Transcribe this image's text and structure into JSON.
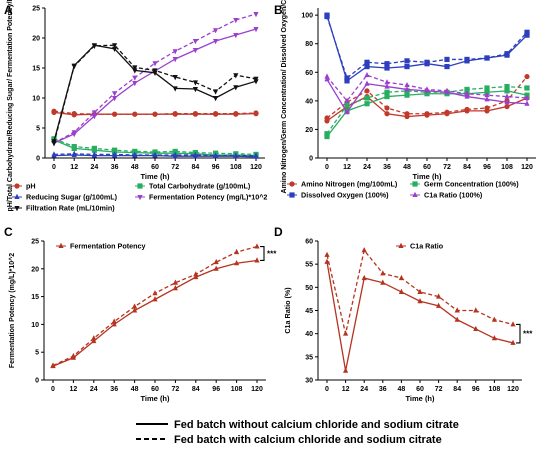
{
  "figure": {
    "bottom_legend": [
      {
        "label": "Fed batch without calcium chloride and sodium citrate",
        "dash": "solid"
      },
      {
        "label": "Fed batch with calcium chloride and sodium citrate",
        "dash": "dashed"
      }
    ]
  },
  "chart_data": [
    {
      "panel": "A",
      "type": "line",
      "xlabel": "Time (h)",
      "ylabel": "pH/Total Carbohydrate/Reducing Sugar/ Fermentation Potency/Filtration Rate",
      "x": [
        0,
        12,
        24,
        36,
        48,
        60,
        72,
        84,
        96,
        108,
        120
      ],
      "xticks": [
        "0",
        "12",
        "24",
        "36",
        "48",
        "60",
        "72",
        "84",
        "96",
        "108",
        "120"
      ],
      "ylim": [
        0,
        25
      ],
      "yticks": [
        "0",
        "5",
        "10",
        "15",
        "20",
        "25"
      ],
      "legend_position": "bottom",
      "legend": [
        {
          "name": "pH",
          "color": "#c0392b",
          "marker": "circle"
        },
        {
          "name": "Total Carbohydrate (g/100mL)",
          "color": "#27ae60",
          "marker": "square"
        },
        {
          "name": "Reducing Sugar (g/100mL)",
          "color": "#2d3fbf",
          "marker": "triangle-up"
        },
        {
          "name": "Fermentation Potency (mg/L)*10^2",
          "color": "#9b3fcf",
          "marker": "triangle-down"
        },
        {
          "name": "Filtration Rate (mL/10min)",
          "color": "#111111",
          "marker": "triangle-down"
        }
      ],
      "series": [
        {
          "legend": 0,
          "color": "#c0392b",
          "dash": "solid",
          "values": [
            7.6,
            7.2,
            7.3,
            7.3,
            7.3,
            7.3,
            7.3,
            7.3,
            7.3,
            7.3,
            7.4
          ]
        },
        {
          "legend": 0,
          "color": "#c0392b",
          "dash": "dashed",
          "values": [
            7.8,
            7.4,
            7.3,
            7.3,
            7.3,
            7.3,
            7.4,
            7.4,
            7.4,
            7.4,
            7.5
          ]
        },
        {
          "legend": 1,
          "color": "#27ae60",
          "dash": "solid",
          "values": [
            3.0,
            1.6,
            1.3,
            1.0,
            0.9,
            0.8,
            0.8,
            0.7,
            0.5,
            0.5,
            0.4
          ]
        },
        {
          "legend": 1,
          "color": "#27ae60",
          "dash": "dashed",
          "values": [
            3.2,
            1.9,
            1.6,
            1.3,
            1.1,
            1.0,
            1.1,
            0.9,
            0.8,
            0.7,
            0.6
          ]
        },
        {
          "legend": 2,
          "color": "#2d3fbf",
          "dash": "solid",
          "values": [
            0.4,
            0.5,
            0.4,
            0.4,
            0.4,
            0.4,
            0.3,
            0.3,
            0.3,
            0.3,
            0.2
          ]
        },
        {
          "legend": 2,
          "color": "#2d3fbf",
          "dash": "dashed",
          "values": [
            0.6,
            0.7,
            0.6,
            0.6,
            0.5,
            0.5,
            0.5,
            0.5,
            0.4,
            0.4,
            0.4
          ]
        },
        {
          "legend": 3,
          "color": "#9b3fcf",
          "dash": "solid",
          "values": [
            2.5,
            4.0,
            7.0,
            10.0,
            12.5,
            14.5,
            16.5,
            18.0,
            19.5,
            20.5,
            21.5
          ]
        },
        {
          "legend": 3,
          "color": "#9b3fcf",
          "dash": "dashed",
          "values": [
            2.5,
            4.3,
            7.6,
            10.8,
            13.4,
            15.8,
            17.8,
            19.5,
            21.3,
            23.0,
            24.0
          ]
        },
        {
          "legend": 4,
          "color": "#111111",
          "dash": "solid",
          "values": [
            2.8,
            15.4,
            18.8,
            18.2,
            14.6,
            14.2,
            11.6,
            11.5,
            10.0,
            11.8,
            12.8
          ]
        },
        {
          "legend": 4,
          "color": "#111111",
          "dash": "dashed",
          "values": [
            2.5,
            15.3,
            18.7,
            18.8,
            15.1,
            14.6,
            13.5,
            12.6,
            11.1,
            13.8,
            13.2
          ]
        }
      ]
    },
    {
      "panel": "B",
      "type": "line",
      "xlabel": "Time (h)",
      "ylabel": "Amino Nitrogen/Germ Concentration/ Dissolved Oxygen/C1a Ratio",
      "x": [
        0,
        12,
        24,
        36,
        48,
        60,
        72,
        84,
        96,
        108,
        120
      ],
      "xticks": [
        "0",
        "12",
        "24",
        "36",
        "48",
        "60",
        "72",
        "84",
        "96",
        "108",
        "120"
      ],
      "ylim": [
        0,
        105
      ],
      "yticks": [
        "0",
        "20",
        "40",
        "60",
        "80",
        "100"
      ],
      "legend_position": "bottom",
      "legend": [
        {
          "name": "Amino Nitrogen (mg/100mL)",
          "color": "#c0392b",
          "marker": "circle"
        },
        {
          "name": "Germ Concentration (100%)",
          "color": "#27ae60",
          "marker": "square"
        },
        {
          "name": "Dissolved Oxygen (100%)",
          "color": "#2d3fbf",
          "marker": "square"
        },
        {
          "name": "C1a Ratio (100%)",
          "color": "#9b3fcf",
          "marker": "triangle-up"
        }
      ],
      "series": [
        {
          "legend": 0,
          "color": "#c0392b",
          "dash": "solid",
          "values": [
            26,
            36,
            43,
            31,
            29,
            30,
            31,
            33,
            33,
            36,
            42
          ]
        },
        {
          "legend": 0,
          "color": "#c0392b",
          "dash": "dashed",
          "values": [
            28,
            39,
            47,
            35,
            31,
            31,
            32,
            34,
            35,
            40,
            57
          ]
        },
        {
          "legend": 1,
          "color": "#27ae60",
          "dash": "solid",
          "values": [
            15,
            33,
            38,
            43,
            44,
            45,
            45,
            45,
            46,
            47,
            44
          ]
        },
        {
          "legend": 1,
          "color": "#27ae60",
          "dash": "dashed",
          "values": [
            17,
            37,
            42,
            46,
            47,
            46,
            46,
            48,
            49,
            50,
            49
          ]
        },
        {
          "legend": 2,
          "color": "#2d3fbf",
          "dash": "solid",
          "values": [
            100,
            54,
            64,
            63,
            64,
            66,
            64,
            68,
            70,
            72,
            86
          ]
        },
        {
          "legend": 2,
          "color": "#2d3fbf",
          "dash": "dashed",
          "values": [
            99,
            56,
            67,
            66,
            68,
            67,
            69,
            69,
            70,
            73,
            88
          ]
        },
        {
          "legend": 3,
          "color": "#9b3fcf",
          "dash": "solid",
          "values": [
            55,
            32,
            52,
            50,
            48,
            47,
            46,
            43,
            41,
            39,
            38
          ]
        },
        {
          "legend": 3,
          "color": "#9b3fcf",
          "dash": "dashed",
          "values": [
            57,
            40,
            58,
            53,
            51,
            48,
            47,
            45,
            44,
            43,
            42
          ]
        }
      ]
    },
    {
      "panel": "C",
      "type": "line",
      "xlabel": "Time (h)",
      "ylabel": "Fermentation Potency (mg/L)*10^2",
      "x": [
        0,
        12,
        24,
        36,
        48,
        60,
        72,
        84,
        96,
        108,
        120
      ],
      "xticks": [
        "0",
        "12",
        "24",
        "36",
        "48",
        "60",
        "72",
        "84",
        "96",
        "108",
        "120"
      ],
      "ylim": [
        0,
        25
      ],
      "yticks": [
        "0",
        "5",
        "10",
        "15",
        "20",
        "25"
      ],
      "legend_position": "top-left",
      "legend": [
        {
          "name": "Fermentation Potency",
          "color": "#b5331f",
          "marker": "triangle-up"
        }
      ],
      "significance": "***",
      "series": [
        {
          "legend": 0,
          "color": "#b5331f",
          "dash": "solid",
          "values": [
            2.5,
            4.0,
            7.0,
            10.0,
            12.5,
            14.5,
            16.5,
            18.5,
            20.0,
            21.0,
            21.5
          ]
        },
        {
          "legend": 0,
          "color": "#b5331f",
          "dash": "dashed",
          "values": [
            2.6,
            4.3,
            7.5,
            10.5,
            13.2,
            15.6,
            17.5,
            19.0,
            21.2,
            23.0,
            24.0
          ]
        }
      ]
    },
    {
      "panel": "D",
      "type": "line",
      "xlabel": "Time (h)",
      "ylabel": "C1a Ratio (%)",
      "x": [
        0,
        12,
        24,
        36,
        48,
        60,
        72,
        84,
        96,
        108,
        120
      ],
      "xticks": [
        "0",
        "12",
        "24",
        "36",
        "48",
        "60",
        "72",
        "84",
        "96",
        "108",
        "120"
      ],
      "ylim": [
        30,
        60
      ],
      "yticks": [
        "30",
        "35",
        "40",
        "45",
        "50",
        "55",
        "60"
      ],
      "legend_position": "top-center",
      "legend": [
        {
          "name": "C1a Ratio",
          "color": "#b5331f",
          "marker": "triangle-up"
        }
      ],
      "significance": "***",
      "series": [
        {
          "legend": 0,
          "color": "#b5331f",
          "dash": "solid",
          "values": [
            55.5,
            32.0,
            52.0,
            51.0,
            49.0,
            47.0,
            46.0,
            43.0,
            41.0,
            39.0,
            38.0
          ]
        },
        {
          "legend": 0,
          "color": "#b5331f",
          "dash": "dashed",
          "values": [
            57.0,
            40.0,
            58.0,
            53.0,
            52.0,
            49.0,
            48.0,
            45.0,
            45.0,
            43.0,
            42.0
          ]
        }
      ]
    }
  ]
}
